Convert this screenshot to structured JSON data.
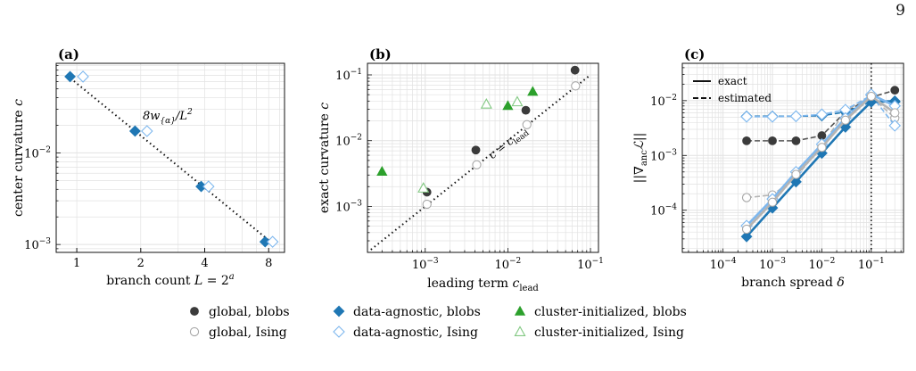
{
  "page_number": "9",
  "legend": {
    "entries": [
      {
        "label": "global, blobs",
        "marker": "circle-filled",
        "color": "#3b3b3b"
      },
      {
        "label": "global, Ising",
        "marker": "circle-open",
        "color": "#a8a8a8"
      },
      {
        "label": "data-agnostic, blobs",
        "marker": "diamond-filled",
        "color": "#1f77b4"
      },
      {
        "label": "data-agnostic, Ising",
        "marker": "diamond-open",
        "color": "#7db7ee"
      },
      {
        "label": "cluster-initialized, blobs",
        "marker": "triangle-filled",
        "color": "#2ca02c"
      },
      {
        "label": "cluster-initialized, Ising",
        "marker": "triangle-open",
        "color": "#82c882"
      }
    ]
  },
  "chart_data": [
    {
      "panel": "(a)",
      "type": "scatter",
      "xlabel": "branch count L = 2^a",
      "ylabel": "center curvature c",
      "xscale": "log2",
      "yscale": "log",
      "xticks": [
        "1",
        "2",
        "4",
        "8"
      ],
      "yticks": [
        "10^-2",
        "10^-3"
      ],
      "annotation": "8w_{α}/L^2",
      "series": [
        {
          "name": "data-agnostic, blobs",
          "x": [
            0.93,
            1.88,
            3.85,
            7.7
          ],
          "y": [
            0.068,
            0.0173,
            0.0043,
            0.00107
          ]
        },
        {
          "name": "data-agnostic, Ising",
          "x": [
            1.07,
            2.14,
            4.17,
            8.35
          ],
          "y": [
            0.068,
            0.0173,
            0.0043,
            0.00107
          ]
        }
      ],
      "reference_line": {
        "style": "dotted",
        "x": [
          0.9,
          8.3
        ],
        "y": [
          0.07,
          0.00104
        ]
      }
    },
    {
      "panel": "(b)",
      "type": "scatter",
      "xlabel": "leading term c_lead",
      "ylabel": "exact curvature c",
      "xscale": "log",
      "yscale": "log",
      "xticks": [
        "10^-3",
        "10^-2",
        "10^-1"
      ],
      "yticks": [
        "10^-3",
        "10^-2",
        "10^-1"
      ],
      "annotation": "c = c_lead",
      "series": [
        {
          "name": "global, blobs",
          "x": [
            0.00105,
            0.0041,
            0.0165,
            0.065
          ],
          "y": [
            0.00165,
            0.0072,
            0.029,
            0.118
          ]
        },
        {
          "name": "global, Ising",
          "x": [
            0.00105,
            0.0042,
            0.017,
            0.066
          ],
          "y": [
            0.00108,
            0.0043,
            0.0175,
            0.068
          ]
        },
        {
          "name": "cluster-initialized, blobs",
          "x": [
            0.0003,
            0.01,
            0.02
          ],
          "y": [
            0.0034,
            0.034,
            0.056
          ]
        },
        {
          "name": "cluster-initialized, Ising",
          "x": [
            0.00095,
            0.0055,
            0.013
          ],
          "y": [
            0.0019,
            0.036,
            0.039
          ]
        }
      ],
      "reference_line": {
        "style": "dotted",
        "label": "c = c_lead",
        "x": [
          0.00022,
          0.1
        ],
        "y": [
          0.00022,
          0.1
        ]
      }
    },
    {
      "panel": "(c)",
      "type": "line",
      "xlabel": "branch spread δ",
      "ylabel": "||∇_anc L||",
      "xscale": "log",
      "yscale": "log",
      "xticks": [
        "10^-4",
        "10^-3",
        "10^-2",
        "10^-1"
      ],
      "yticks": [
        "10^-4",
        "10^-3",
        "10^-2"
      ],
      "line_legend": [
        "exact",
        "estimated"
      ],
      "vline_x": 0.1,
      "x": [
        0.0003,
        0.001,
        0.003,
        0.01,
        0.03,
        0.1,
        0.3
      ],
      "series": [
        {
          "name": "global, blobs",
          "style": "dashed",
          "y": [
            0.00185,
            0.00185,
            0.00185,
            0.0023,
            0.0062,
            0.0115,
            0.0155
          ]
        },
        {
          "name": "global, Ising",
          "style": "dashed",
          "y": [
            0.00017,
            0.00019,
            0.0004,
            0.0015,
            0.0065,
            0.012,
            0.0048
          ]
        },
        {
          "name": "data-agnostic, blobs",
          "style": "dashed",
          "y": [
            0.0052,
            0.0052,
            0.0052,
            0.0053,
            0.0062,
            0.0095,
            0.0095
          ]
        },
        {
          "name": "data-agnostic, Ising",
          "style": "dashed",
          "y": [
            0.0051,
            0.0051,
            0.0052,
            0.0056,
            0.0068,
            0.0125,
            0.0035
          ]
        },
        {
          "name": "data-agnostic, blobs",
          "style": "solid",
          "y": [
            3.3e-05,
            0.00011,
            0.00033,
            0.0011,
            0.0033,
            0.0095,
            0.0098
          ]
        },
        {
          "name": "data-agnostic, Ising",
          "style": "solid",
          "y": [
            5.2e-05,
            0.00016,
            0.0005,
            0.0016,
            0.0048,
            0.013,
            0.008
          ]
        },
        {
          "name": "global, Ising",
          "style": "solid",
          "y": [
            4.5e-05,
            0.00014,
            0.00045,
            0.0014,
            0.0044,
            0.012,
            0.006
          ]
        }
      ]
    }
  ]
}
